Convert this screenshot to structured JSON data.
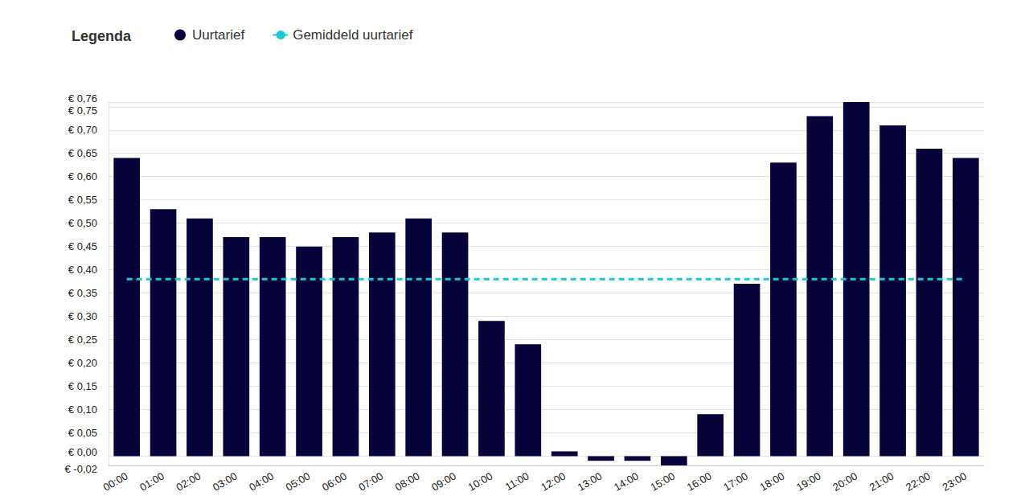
{
  "chart_data": {
    "type": "bar",
    "legend_title": "Legenda",
    "legend": "top-left",
    "grid": true,
    "categories": [
      "00:00",
      "01:00",
      "02:00",
      "03:00",
      "04:00",
      "05:00",
      "06:00",
      "07:00",
      "08:00",
      "09:00",
      "10:00",
      "11:00",
      "12:00",
      "13:00",
      "14:00",
      "15:00",
      "16:00",
      "17:00",
      "18:00",
      "19:00",
      "20:00",
      "21:00",
      "22:00",
      "23:00"
    ],
    "series": [
      {
        "name": "Uurtarief",
        "type": "bar",
        "marker": "circle",
        "color": "#06033a",
        "values": [
          0.64,
          0.53,
          0.51,
          0.47,
          0.47,
          0.45,
          0.47,
          0.48,
          0.51,
          0.48,
          0.29,
          0.24,
          0.01,
          -0.01,
          -0.01,
          -0.02,
          0.09,
          0.37,
          0.63,
          0.73,
          0.76,
          0.71,
          0.66,
          0.64
        ]
      },
      {
        "name": "Gemiddeld uurtarief",
        "type": "line",
        "line_style": "dashed",
        "color": "#1ec8d2",
        "values": [
          0.38,
          0.38,
          0.38,
          0.38,
          0.38,
          0.38,
          0.38,
          0.38,
          0.38,
          0.38,
          0.38,
          0.38,
          0.38,
          0.38,
          0.38,
          0.38,
          0.38,
          0.38,
          0.38,
          0.38,
          0.38,
          0.38,
          0.38,
          0.38
        ]
      }
    ],
    "ylim": [
      -0.02,
      0.76
    ],
    "yticks": [
      {
        "value": -0.02,
        "label": "€ -0,02"
      },
      {
        "value": 0,
        "label": "€ 0,00"
      },
      {
        "value": 0.05,
        "label": "€ 0,05"
      },
      {
        "value": 0.1,
        "label": "€ 0,10"
      },
      {
        "value": 0.15,
        "label": "€ 0,15"
      },
      {
        "value": 0.2,
        "label": "€ 0,20"
      },
      {
        "value": 0.25,
        "label": "€ 0,25"
      },
      {
        "value": 0.3,
        "label": "€ 0,30"
      },
      {
        "value": 0.35,
        "label": "€ 0,35"
      },
      {
        "value": 0.4,
        "label": "€ 0,40"
      },
      {
        "value": 0.45,
        "label": "€ 0,45"
      },
      {
        "value": 0.5,
        "label": "€ 0,50"
      },
      {
        "value": 0.55,
        "label": "€ 0,55"
      },
      {
        "value": 0.6,
        "label": "€ 0,60"
      },
      {
        "value": 0.65,
        "label": "€ 0,65"
      },
      {
        "value": 0.7,
        "label": "€ 0,70"
      },
      {
        "value": 0.75,
        "label": "€ 0,75"
      },
      {
        "value": 0.76,
        "label": "€ 0,76"
      }
    ]
  }
}
